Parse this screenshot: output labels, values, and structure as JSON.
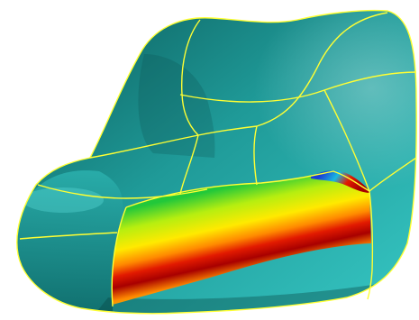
{
  "scene": {
    "subject": "freeform-surface-patch-model",
    "background_color": "#ffffff",
    "body_color": "#1f9a98",
    "body_highlight_color": "#36c6c3",
    "body_shadow_color": "#0b5b5a",
    "patch_boundary_color": "#ffff33"
  },
  "analysis_map": {
    "colormap": [
      "#1a3bd6",
      "#19b8e0",
      "#22c83a",
      "#b6ee10",
      "#ffea00",
      "#ff8a00",
      "#e21a00",
      "#a80000"
    ]
  }
}
